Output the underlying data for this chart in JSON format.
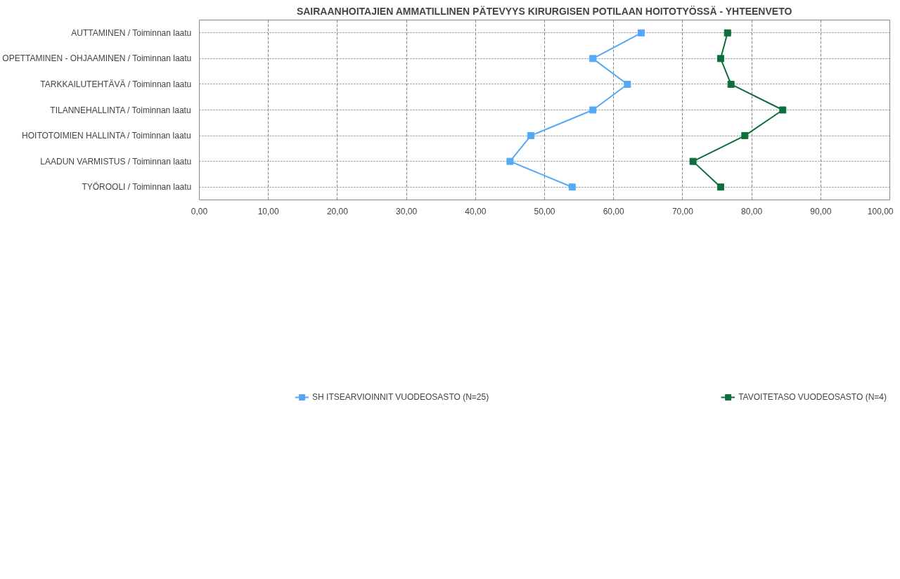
{
  "chart_data": {
    "type": "line",
    "orientation": "horizontal",
    "title": "SAIRAANHOITAJIEN AMMATILLINEN PÄTEVYYS KIRURGISEN POTILAAN HOITOTYÖSSÄ - YHTEENVETO",
    "categories": [
      "AUTTAMINEN / Toiminnan laatu",
      "OPETTAMINEN - OHJAAMINEN / Toiminnan laatu",
      "TARKKAILUTEHTÄVÄ / Toiminnan laatu",
      "TILANNEHALLINTA / Toiminnan laatu",
      "HOITOTOIMIEN HALLINTA / Toiminnan laatu",
      "LAADUN VARMISTUS / Toiminnan laatu",
      "TYÖROOLI / Toiminnan laatu"
    ],
    "series": [
      {
        "name": "SH ITSEARVIOINNIT VUODEOSASTO (N=25)",
        "color": "#55a8f5",
        "values": [
          64,
          57,
          62,
          57,
          48,
          45,
          54
        ]
      },
      {
        "name": "TAVOITETASO VUODEOSASTO (N=4)",
        "color": "#0e6e3c",
        "values": [
          76.5,
          75.5,
          77,
          84.5,
          79,
          71.5,
          75.5
        ]
      }
    ],
    "xlim": [
      0,
      100
    ],
    "xticks": [
      {
        "value": 0,
        "label": "0,00"
      },
      {
        "value": 10,
        "label": "10,00"
      },
      {
        "value": 20,
        "label": "20,00"
      },
      {
        "value": 30,
        "label": "30,00"
      },
      {
        "value": 40,
        "label": "40,00"
      },
      {
        "value": 50,
        "label": "50,00"
      },
      {
        "value": 60,
        "label": "60,00"
      },
      {
        "value": 70,
        "label": "70,00"
      },
      {
        "value": 80,
        "label": "80,00"
      },
      {
        "value": 90,
        "label": "90,00"
      },
      {
        "value": 100,
        "label": "100,00"
      }
    ],
    "grid": true,
    "legend": "bottom",
    "marker": "square",
    "line_style": "solid"
  }
}
